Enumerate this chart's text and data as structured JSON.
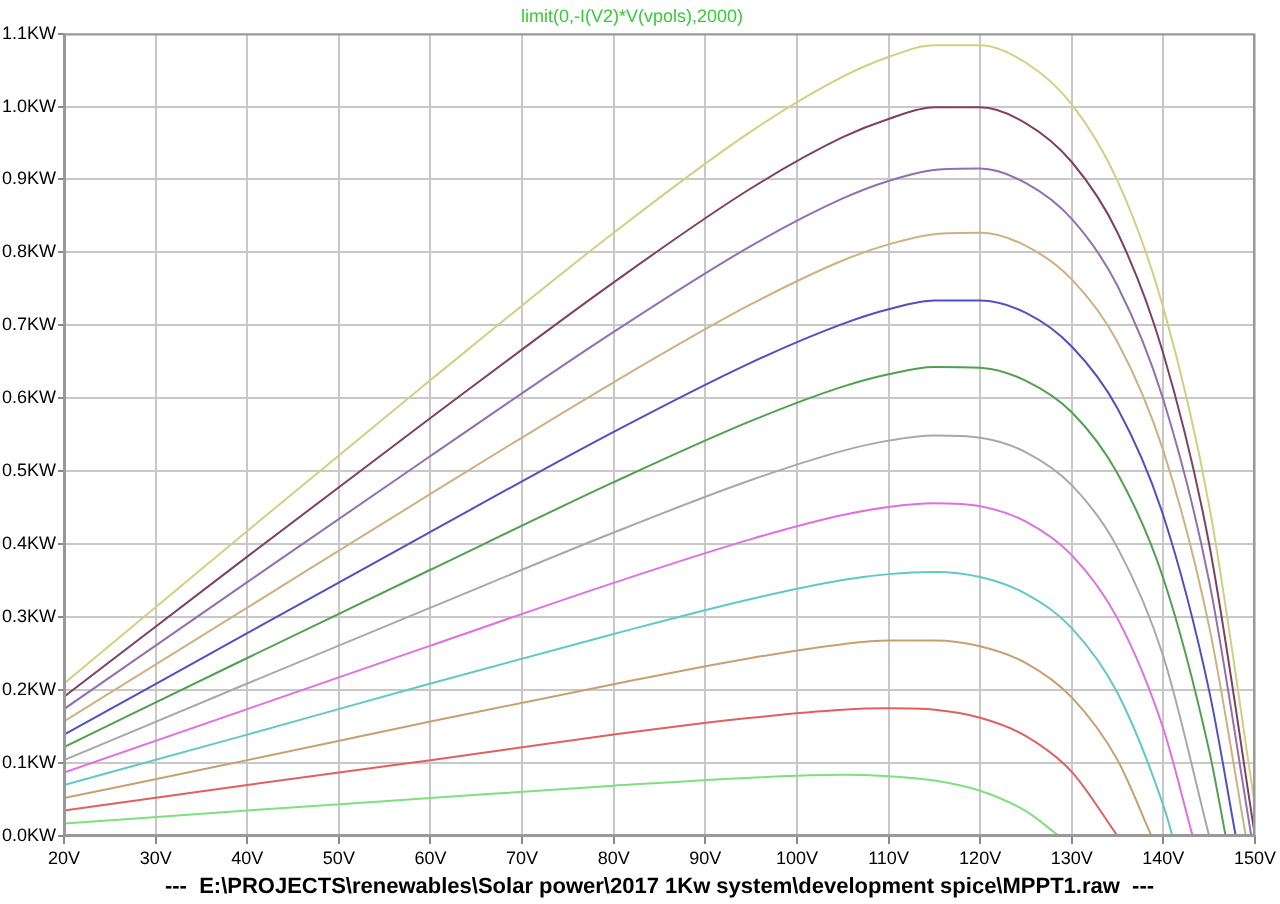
{
  "chart_data": {
    "type": "line",
    "title": "limit(0,-I(V2)*V(vpols),2000)",
    "xlabel": "---  E:\\PROJECTS\\renewables\\Solar power\\2017 1Kw system\\development spice\\MPPT1.raw  ---",
    "xlim": [
      20,
      150
    ],
    "xticks": [
      {
        "value": 20,
        "label": "20V"
      },
      {
        "value": 30,
        "label": "30V"
      },
      {
        "value": 40,
        "label": "40V"
      },
      {
        "value": 50,
        "label": "50V"
      },
      {
        "value": 60,
        "label": "60V"
      },
      {
        "value": 70,
        "label": "70V"
      },
      {
        "value": 80,
        "label": "80V"
      },
      {
        "value": 90,
        "label": "90V"
      },
      {
        "value": 100,
        "label": "100V"
      },
      {
        "value": 110,
        "label": "110V"
      },
      {
        "value": 120,
        "label": "120V"
      },
      {
        "value": 130,
        "label": "130V"
      },
      {
        "value": 140,
        "label": "140V"
      },
      {
        "value": 150,
        "label": "150V"
      }
    ],
    "ylim": [
      0,
      1.1
    ],
    "yticks": [
      {
        "value": 0,
        "label": "0.0KW"
      },
      {
        "value": 0.1,
        "label": "0.1KW"
      },
      {
        "value": 0.2,
        "label": "0.2KW"
      },
      {
        "value": 0.3,
        "label": "0.3KW"
      },
      {
        "value": 0.4,
        "label": "0.4KW"
      },
      {
        "value": 0.5,
        "label": "0.5KW"
      },
      {
        "value": 0.6,
        "label": "0.6KW"
      },
      {
        "value": 0.7,
        "label": "0.7KW"
      },
      {
        "value": 0.8,
        "label": "0.8KW"
      },
      {
        "value": 0.9,
        "label": "0.9KW"
      },
      {
        "value": 1.0,
        "label": "1.0KW"
      },
      {
        "value": 1.1,
        "label": "1.1KW"
      }
    ],
    "grid": true,
    "legend": false,
    "marker": "none",
    "line_style": "solid",
    "series": [
      {
        "color": "#7fe07f",
        "x": [
          20,
          40,
          60,
          80,
          95,
          105,
          110,
          115,
          120,
          125,
          128.6
        ],
        "values": [
          0.017,
          0.035,
          0.052,
          0.069,
          0.08,
          0.084,
          0.082,
          0.076,
          0.062,
          0.034,
          0
        ]
      },
      {
        "color": "#e06060",
        "x": [
          20,
          40,
          60,
          80,
          95,
          105,
          110,
          115,
          120,
          125,
          130,
          135
        ],
        "values": [
          0.035,
          0.07,
          0.104,
          0.139,
          0.162,
          0.173,
          0.175,
          0.173,
          0.162,
          0.137,
          0.088,
          0
        ]
      },
      {
        "color": "#c8a070",
        "x": [
          20,
          40,
          60,
          80,
          95,
          105,
          110,
          115,
          120,
          125,
          130,
          135,
          138.7
        ],
        "values": [
          0.052,
          0.104,
          0.157,
          0.208,
          0.244,
          0.263,
          0.268,
          0.268,
          0.26,
          0.237,
          0.19,
          0.104,
          0
        ]
      },
      {
        "color": "#60c8c8",
        "x": [
          20,
          40,
          60,
          80,
          95,
          105,
          110,
          115,
          120,
          125,
          130,
          135,
          140,
          141
        ],
        "values": [
          0.07,
          0.139,
          0.209,
          0.277,
          0.325,
          0.351,
          0.359,
          0.362,
          0.355,
          0.332,
          0.285,
          0.196,
          0.042,
          0
        ]
      },
      {
        "color": "#e070e0",
        "x": [
          20,
          40,
          60,
          80,
          95,
          105,
          110,
          115,
          120,
          125,
          130,
          135,
          140,
          143.2
        ],
        "values": [
          0.087,
          0.174,
          0.261,
          0.347,
          0.407,
          0.44,
          0.451,
          0.456,
          0.452,
          0.431,
          0.385,
          0.298,
          0.147,
          0
        ]
      },
      {
        "color": "#a8a8a8",
        "x": [
          20,
          40,
          60,
          80,
          95,
          105,
          110,
          115,
          120,
          125,
          130,
          135,
          140,
          145
        ],
        "values": [
          0.104,
          0.209,
          0.313,
          0.416,
          0.488,
          0.528,
          0.542,
          0.549,
          0.546,
          0.526,
          0.481,
          0.395,
          0.246,
          0
        ]
      },
      {
        "color": "#50a050",
        "x": [
          20,
          40,
          60,
          80,
          95,
          105,
          110,
          115,
          120,
          125,
          130,
          135,
          140,
          145,
          146.8
        ],
        "values": [
          0.122,
          0.244,
          0.365,
          0.485,
          0.569,
          0.616,
          0.633,
          0.643,
          0.642,
          0.624,
          0.581,
          0.497,
          0.353,
          0.117,
          0
        ]
      },
      {
        "color": "#5050c0",
        "x": [
          20,
          40,
          60,
          80,
          95,
          105,
          110,
          115,
          120,
          125,
          130,
          135,
          140,
          145,
          147.9
        ],
        "values": [
          0.139,
          0.278,
          0.417,
          0.554,
          0.649,
          0.702,
          0.722,
          0.734,
          0.734,
          0.717,
          0.671,
          0.586,
          0.439,
          0.199,
          0
        ]
      },
      {
        "color": "#d0b080",
        "x": [
          20,
          40,
          60,
          80,
          95,
          105,
          110,
          115,
          120,
          125,
          130,
          135,
          140,
          145,
          149
        ],
        "values": [
          0.157,
          0.313,
          0.469,
          0.622,
          0.729,
          0.789,
          0.811,
          0.825,
          0.827,
          0.809,
          0.763,
          0.677,
          0.528,
          0.287,
          0
        ]
      },
      {
        "color": "#9070b0",
        "x": [
          20,
          40,
          60,
          80,
          95,
          105,
          110,
          115,
          120,
          125,
          130,
          135,
          140,
          145,
          149.6
        ],
        "values": [
          0.174,
          0.348,
          0.521,
          0.691,
          0.809,
          0.874,
          0.898,
          0.913,
          0.915,
          0.895,
          0.846,
          0.754,
          0.598,
          0.349,
          0
        ]
      },
      {
        "color": "#804060",
        "x": [
          20,
          40,
          60,
          80,
          95,
          105,
          110,
          115,
          120,
          125,
          130,
          135,
          140,
          145,
          150
        ],
        "values": [
          0.191,
          0.383,
          0.573,
          0.759,
          0.888,
          0.958,
          0.983,
          0.999,
          0.999,
          0.977,
          0.924,
          0.827,
          0.661,
          0.4,
          0
        ]
      },
      {
        "color": "#d0d080",
        "x": [
          20,
          40,
          60,
          80,
          95,
          105,
          110,
          115,
          120,
          125,
          130,
          135,
          140,
          145,
          150
        ],
        "values": [
          0.209,
          0.418,
          0.625,
          0.827,
          0.966,
          1.041,
          1.068,
          1.084,
          1.084,
          1.06,
          1.003,
          0.898,
          0.724,
          0.453,
          0.041
        ]
      }
    ]
  }
}
